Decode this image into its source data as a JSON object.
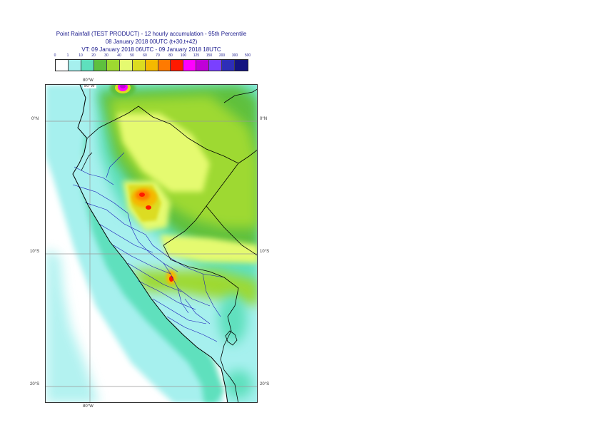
{
  "header": {
    "title": "Point Rainfall (TEST PRODUCT) - 12 hourly accumulation - 95th Percentile",
    "issue": "08 January 2018 00UTC (t+30,t+42)",
    "valid": "VT: 09 January 2018 06UTC - 09 January 2018 18UTC"
  },
  "legend": {
    "thresholds": [
      "0",
      "1",
      "10",
      "20",
      "30",
      "40",
      "50",
      "60",
      "70",
      "80",
      "100",
      "125",
      "150",
      "200",
      "300",
      "500"
    ],
    "colors": [
      "#ffffff",
      "#a6f0ee",
      "#5ee0bd",
      "#5ec03e",
      "#9ed930",
      "#e5fa70",
      "#dcdc20",
      "#f5b800",
      "#ff7a00",
      "#ff1a00",
      "#ff00ff",
      "#c000d8",
      "#7a40ff",
      "#2e2eb8",
      "#141480"
    ]
  },
  "map": {
    "lon_labels": [
      "80°W",
      "80°W"
    ],
    "lat_labels": [
      "0°N",
      "10°S",
      "20°S"
    ],
    "colors": {
      "ocean": "#ffffff",
      "coastline": "#000000",
      "border": "#000000",
      "admin": "#1a1ab8",
      "grid": "#999999"
    }
  }
}
